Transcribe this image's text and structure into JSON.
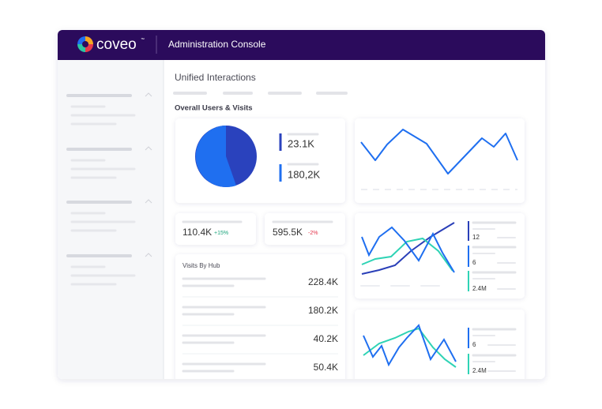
{
  "header": {
    "brand": "coveo",
    "trademark": "™",
    "title": "Administration Console"
  },
  "page": {
    "title": "Unified Interactions",
    "section": "Overall Users & Visits"
  },
  "overview": {
    "stats": [
      "23.1K",
      "180,2K"
    ]
  },
  "kpis": [
    {
      "value": "110.4K",
      "change": "+15%"
    },
    {
      "value": "595.5K",
      "change": "-2%"
    }
  ],
  "hub": {
    "title": "Visits By Hub",
    "rows": [
      "228.4K",
      "180.2K",
      "40.2K",
      "50.4K"
    ]
  },
  "trends": [
    {
      "labels": [
        "12",
        "6",
        "2.4M"
      ]
    },
    {
      "labels": [
        "6",
        "2.4M"
      ]
    }
  ]
}
